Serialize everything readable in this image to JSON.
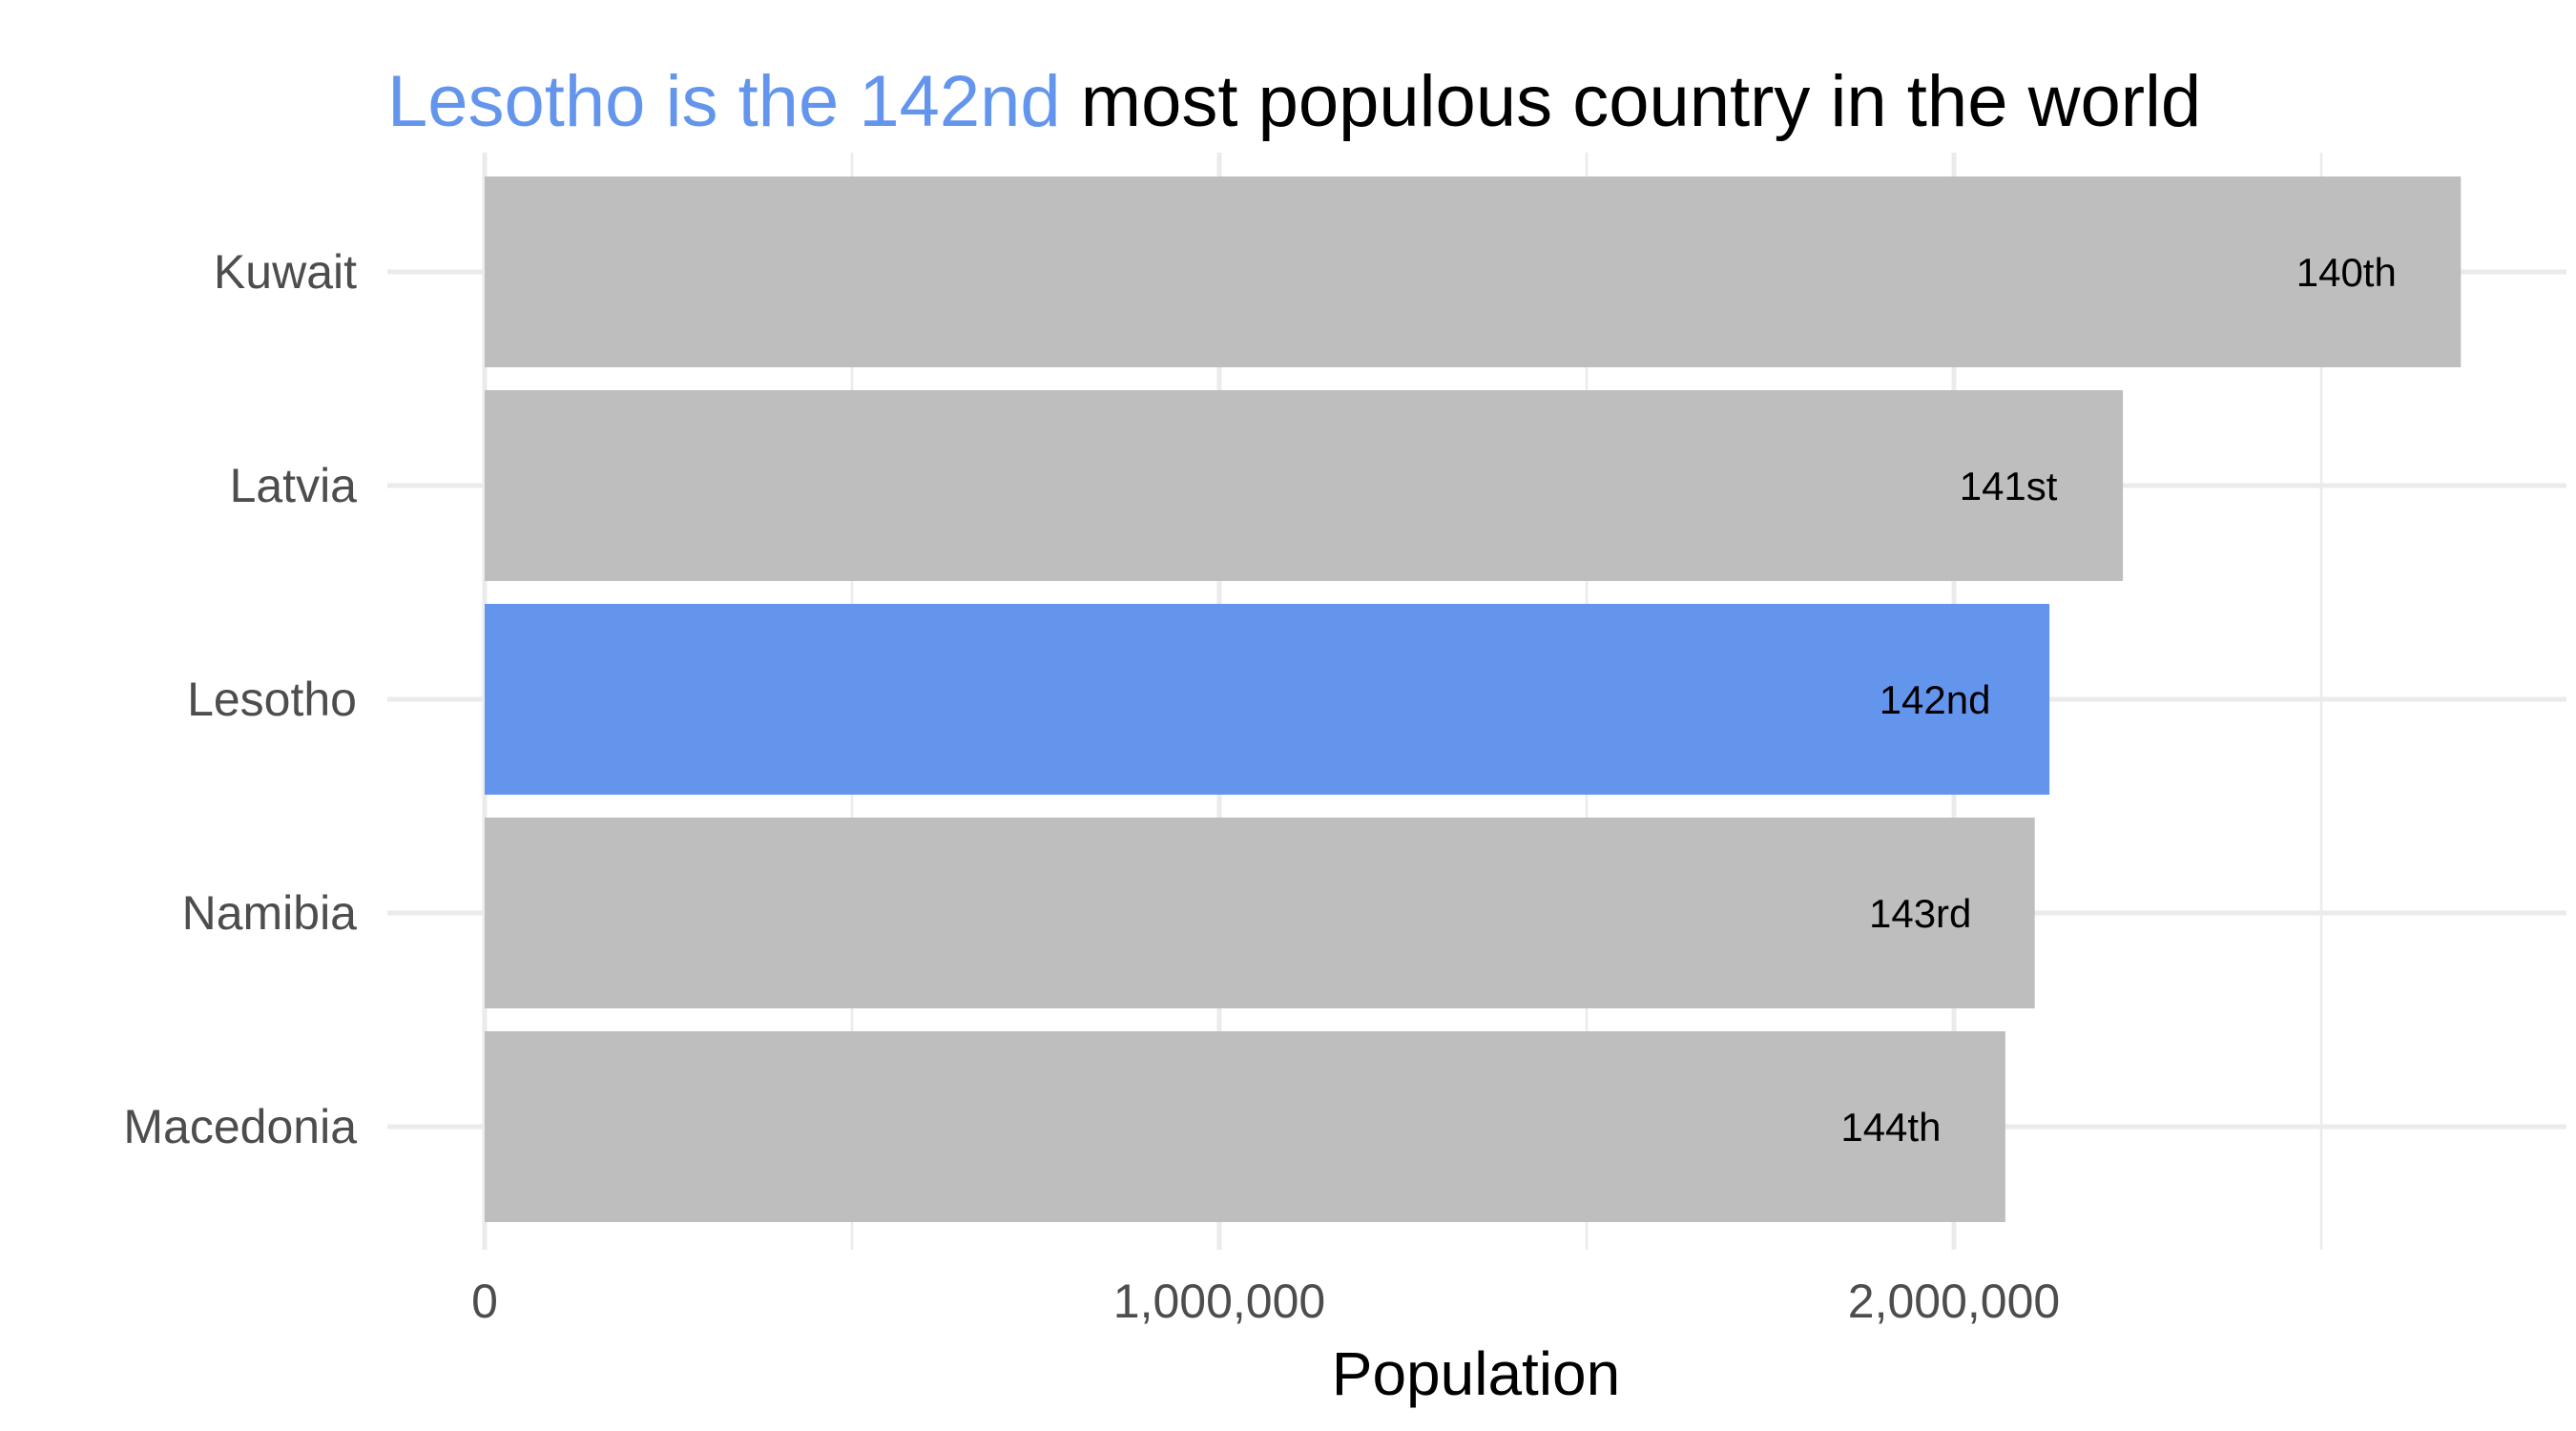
{
  "title": {
    "highlight": "Lesotho is the 142nd",
    "rest": " most populous country in the world"
  },
  "colors": {
    "highlight": "#6495ED",
    "bar": "#BEBEBE",
    "grid": "#EBEBEB",
    "label": "#4D4D4D"
  },
  "chart_data": {
    "type": "bar",
    "orientation": "horizontal",
    "categories": [
      "Kuwait",
      "Latvia",
      "Lesotho",
      "Namibia",
      "Macedonia"
    ],
    "values": [
      2690000,
      2230000,
      2130000,
      2110000,
      2070000
    ],
    "bar_labels": [
      "140th",
      "141st",
      "142nd",
      "143rd",
      "144th"
    ],
    "highlight_index": 2,
    "xlabel": "Population",
    "ylabel": "",
    "xlim": [
      0,
      2830000
    ],
    "x_ticks": [
      0,
      1000000,
      2000000
    ],
    "x_tick_labels": [
      "0",
      "1,000,000",
      "2,000,000"
    ],
    "grid": true,
    "legend": "none"
  }
}
